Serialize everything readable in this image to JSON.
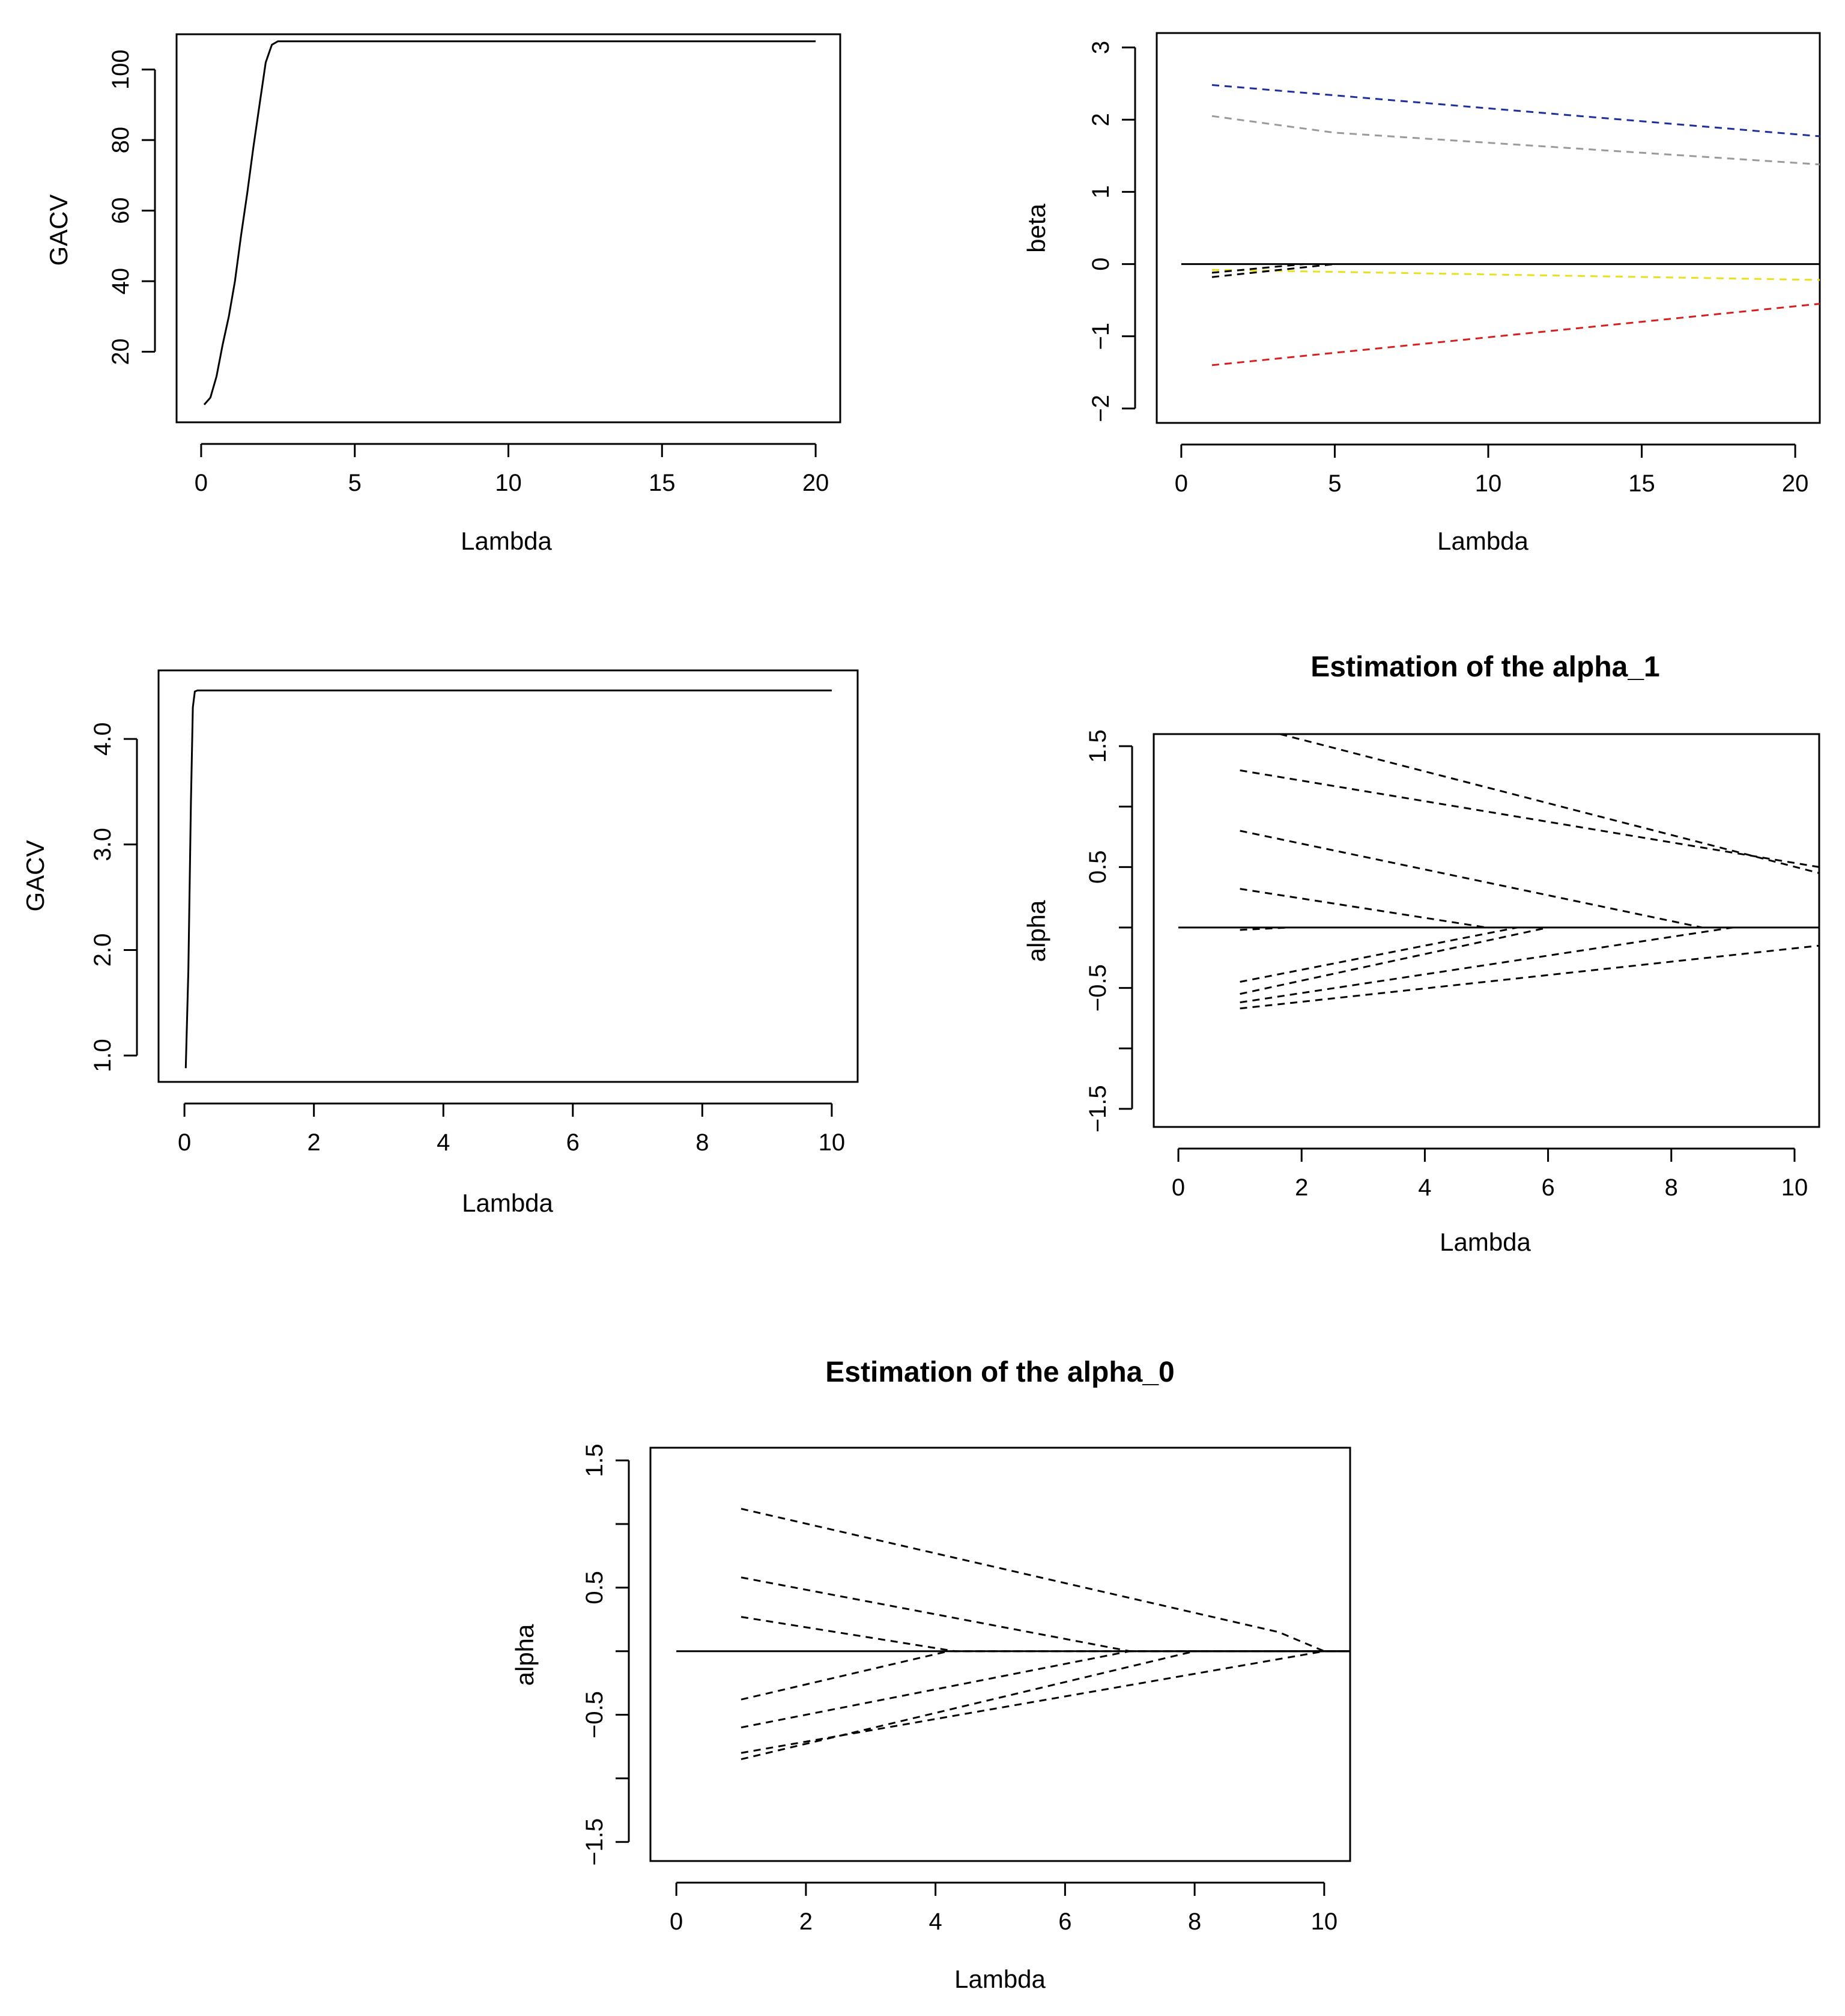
{
  "chart_data": [
    {
      "id": "gacv1",
      "type": "line",
      "title": "",
      "xlabel": "Lambda",
      "ylabel": "GACV",
      "xlim": [
        -0.8,
        20.8
      ],
      "ylim": [
        0,
        110
      ],
      "xticks": [
        0,
        5,
        10,
        15,
        20
      ],
      "xtick_labels": [
        "0",
        "5",
        "10",
        "15",
        "20"
      ],
      "yticks": [
        20,
        40,
        60,
        80,
        100
      ],
      "ytick_labels": [
        "20",
        "40",
        "60",
        "80",
        "100"
      ],
      "series": [
        {
          "name": "GACV",
          "color": "#000000",
          "dash": false,
          "x": [
            0.1,
            0.3,
            0.5,
            0.7,
            0.9,
            1.1,
            1.3,
            1.5,
            1.7,
            1.9,
            2.1,
            2.3,
            2.5,
            20
          ],
          "y": [
            5,
            7,
            13,
            22,
            30,
            40,
            53,
            65,
            78,
            90,
            102,
            107,
            108,
            108
          ]
        }
      ]
    },
    {
      "id": "beta",
      "type": "line",
      "title": "",
      "xlabel": "Lambda",
      "ylabel": "beta",
      "xlim": [
        -0.8,
        20.8
      ],
      "ylim": [
        -2.2,
        3.2
      ],
      "xticks": [
        0,
        5,
        10,
        15,
        20
      ],
      "xtick_labels": [
        "0",
        "5",
        "10",
        "15",
        "20"
      ],
      "yticks": [
        -2,
        -1,
        0,
        1,
        2,
        3
      ],
      "ytick_labels": [
        "−2",
        "−1",
        "0",
        "1",
        "2",
        "3"
      ],
      "series": [
        {
          "name": "zero",
          "color": "#000000",
          "dash": false,
          "x": [
            0,
            20.8
          ],
          "y": [
            0,
            0
          ]
        },
        {
          "name": "blue",
          "color": "#1f2f9a",
          "dash": true,
          "x": [
            1,
            20.8
          ],
          "y": [
            2.48,
            1.77
          ]
        },
        {
          "name": "grey",
          "color": "#9a9a9a",
          "dash": true,
          "x": [
            1,
            5,
            20.8
          ],
          "y": [
            2.05,
            1.82,
            1.38
          ]
        },
        {
          "name": "yellow",
          "color": "#e8e020",
          "dash": true,
          "x": [
            1,
            20.8
          ],
          "y": [
            -0.08,
            -0.22
          ]
        },
        {
          "name": "black-a",
          "color": "#000000",
          "dash": true,
          "x": [
            1,
            4
          ],
          "y": [
            -0.12,
            0
          ]
        },
        {
          "name": "black-b",
          "color": "#000000",
          "dash": true,
          "x": [
            1,
            5
          ],
          "y": [
            -0.18,
            0
          ]
        },
        {
          "name": "red",
          "color": "#d42020",
          "dash": true,
          "x": [
            1,
            20.8
          ],
          "y": [
            -1.4,
            -0.55
          ]
        }
      ]
    },
    {
      "id": "gacv2",
      "type": "line",
      "title": "",
      "xlabel": "Lambda",
      "ylabel": "GACV",
      "xlim": [
        -0.4,
        10.4
      ],
      "ylim": [
        0.75,
        4.65
      ],
      "xticks": [
        0,
        2,
        4,
        6,
        8,
        10
      ],
      "xtick_labels": [
        "0",
        "2",
        "4",
        "6",
        "8",
        "10"
      ],
      "yticks": [
        1.0,
        2.0,
        3.0,
        4.0
      ],
      "ytick_labels": [
        "1.0",
        "2.0",
        "3.0",
        "4.0"
      ],
      "series": [
        {
          "name": "GACV",
          "color": "#000000",
          "dash": false,
          "x": [
            0.02,
            0.06,
            0.1,
            0.13,
            0.16,
            0.2,
            10
          ],
          "y": [
            0.88,
            1.8,
            3.4,
            4.3,
            4.45,
            4.46,
            4.46
          ]
        }
      ]
    },
    {
      "id": "alpha1",
      "type": "line",
      "title": "Estimation of the alpha_1",
      "xlabel": "Lambda",
      "ylabel": "alpha",
      "xlim": [
        -0.4,
        10.4
      ],
      "ylim": [
        -1.65,
        1.6
      ],
      "xticks": [
        0,
        2,
        4,
        6,
        8,
        10
      ],
      "xtick_labels": [
        "0",
        "2",
        "4",
        "6",
        "8",
        "10"
      ],
      "yticks": [
        -1.5,
        -1.0,
        -0.5,
        0.0,
        0.5,
        1.0,
        1.5
      ],
      "ytick_labels": [
        "−1.5",
        "",
        "−0.5",
        "",
        "0.5",
        "",
        "1.5"
      ],
      "series": [
        {
          "name": "zero",
          "color": "#000000",
          "dash": false,
          "x": [
            0,
            10.4
          ],
          "y": [
            0,
            0
          ]
        },
        {
          "name": "p1",
          "color": "#000000",
          "dash": true,
          "x": [
            1.65,
            10.4
          ],
          "y": [
            1.6,
            0.45
          ]
        },
        {
          "name": "p2",
          "color": "#000000",
          "dash": true,
          "x": [
            1,
            10.4
          ],
          "y": [
            1.3,
            0.5
          ]
        },
        {
          "name": "p3",
          "color": "#000000",
          "dash": true,
          "x": [
            1,
            8.5,
            10.4
          ],
          "y": [
            0.8,
            0,
            0
          ]
        },
        {
          "name": "p4",
          "color": "#000000",
          "dash": true,
          "x": [
            1,
            5,
            10.4
          ],
          "y": [
            0.32,
            0,
            0
          ]
        },
        {
          "name": "p5",
          "color": "#000000",
          "dash": true,
          "x": [
            1,
            1.8
          ],
          "y": [
            -0.02,
            0
          ]
        },
        {
          "name": "n1",
          "color": "#000000",
          "dash": true,
          "x": [
            1,
            5.5,
            10.4
          ],
          "y": [
            -0.45,
            0,
            0
          ]
        },
        {
          "name": "n2",
          "color": "#000000",
          "dash": true,
          "x": [
            1,
            6,
            10.4
          ],
          "y": [
            -0.55,
            0,
            0
          ]
        },
        {
          "name": "n3",
          "color": "#000000",
          "dash": true,
          "x": [
            1,
            9,
            10.4
          ],
          "y": [
            -0.62,
            0,
            0
          ]
        },
        {
          "name": "n4",
          "color": "#000000",
          "dash": true,
          "x": [
            1,
            10.4
          ],
          "y": [
            -0.67,
            -0.15
          ]
        }
      ]
    },
    {
      "id": "alpha0",
      "type": "line",
      "title": "Estimation of the alpha_0",
      "xlabel": "Lambda",
      "ylabel": "alpha",
      "xlim": [
        -0.4,
        10.4
      ],
      "ylim": [
        -1.65,
        1.6
      ],
      "xticks": [
        0,
        2,
        4,
        6,
        8,
        10
      ],
      "xtick_labels": [
        "0",
        "2",
        "4",
        "6",
        "8",
        "10"
      ],
      "yticks": [
        -1.5,
        -1.0,
        -0.5,
        0.0,
        0.5,
        1.0,
        1.5
      ],
      "ytick_labels": [
        "−1.5",
        "",
        "−0.5",
        "",
        "0.5",
        "",
        "1.5"
      ],
      "series": [
        {
          "name": "zero",
          "color": "#000000",
          "dash": false,
          "x": [
            0,
            10.4
          ],
          "y": [
            0,
            0
          ]
        },
        {
          "name": "p1",
          "color": "#000000",
          "dash": true,
          "x": [
            1,
            9.3,
            10
          ],
          "y": [
            1.12,
            0.15,
            0
          ]
        },
        {
          "name": "p2",
          "color": "#000000",
          "dash": true,
          "x": [
            1,
            7,
            10.4
          ],
          "y": [
            0.58,
            0,
            0
          ]
        },
        {
          "name": "p3",
          "color": "#000000",
          "dash": true,
          "x": [
            1,
            4.3,
            10.4
          ],
          "y": [
            0.27,
            0,
            0
          ]
        },
        {
          "name": "n1",
          "color": "#000000",
          "dash": true,
          "x": [
            1,
            4.2,
            10.4
          ],
          "y": [
            -0.38,
            0,
            0
          ]
        },
        {
          "name": "n2",
          "color": "#000000",
          "dash": true,
          "x": [
            1,
            7,
            10.4
          ],
          "y": [
            -0.6,
            0,
            0
          ]
        },
        {
          "name": "n3",
          "color": "#000000",
          "dash": true,
          "x": [
            1,
            10,
            10.4
          ],
          "y": [
            -0.8,
            0,
            0
          ]
        },
        {
          "name": "n4",
          "color": "#000000",
          "dash": true,
          "x": [
            1,
            8,
            10.4
          ],
          "y": [
            -0.85,
            0,
            0
          ]
        }
      ]
    }
  ]
}
